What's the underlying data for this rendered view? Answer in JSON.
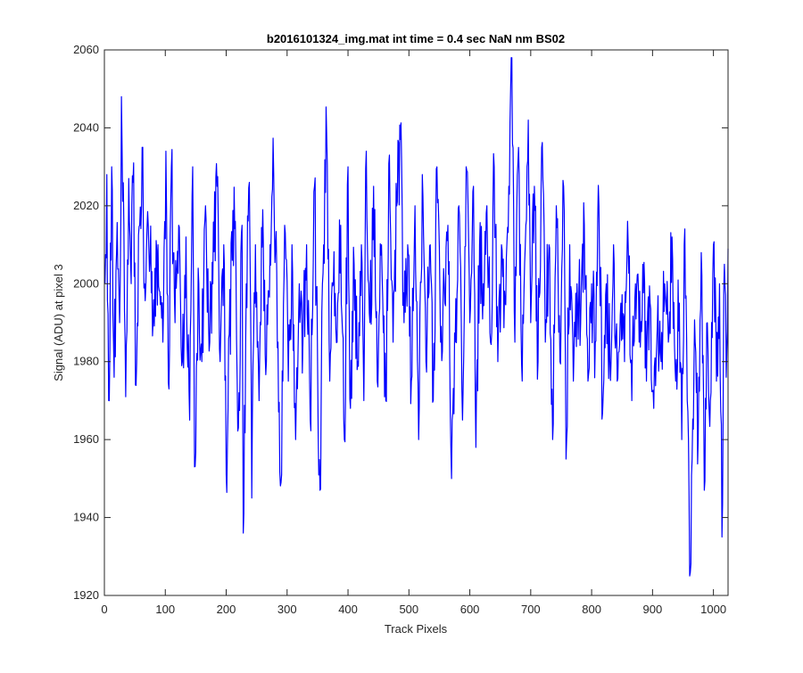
{
  "chart_data": {
    "type": "line",
    "title": "b2016101324_img.mat int time = 0.4 sec  NaN nm BS02",
    "xlabel": "Track Pixels",
    "ylabel": "Signal (ADU) at pixel 3",
    "xlim": [
      0,
      1024
    ],
    "ylim": [
      1920,
      2060
    ],
    "xticks": [
      0,
      100,
      200,
      300,
      400,
      500,
      600,
      700,
      800,
      900,
      1000
    ],
    "yticks": [
      1920,
      1940,
      1960,
      1980,
      2000,
      2020,
      2040,
      2060
    ],
    "grid": false,
    "series_color": "#0000ff",
    "series": [
      {
        "x_start": 1,
        "x_step": 1,
        "anchors": [
          [
            1,
            2000
          ],
          [
            4,
            2028
          ],
          [
            7,
            1970
          ],
          [
            12,
            2030
          ],
          [
            16,
            1976
          ],
          [
            20,
            2008
          ],
          [
            25,
            1990
          ],
          [
            28,
            2048
          ],
          [
            32,
            2015
          ],
          [
            35,
            1971
          ],
          [
            40,
            2027
          ],
          [
            44,
            2000
          ],
          [
            48,
            2031
          ],
          [
            51,
            1974
          ],
          [
            58,
            2015
          ],
          [
            62,
            2035
          ],
          [
            66,
            2000
          ],
          [
            72,
            2015
          ],
          [
            80,
            1990
          ],
          [
            88,
            2010
          ],
          [
            96,
            1985
          ],
          [
            101,
            2034
          ],
          [
            106,
            1973
          ],
          [
            110,
            2030
          ],
          [
            116,
            1990
          ],
          [
            122,
            2015
          ],
          [
            128,
            1980
          ],
          [
            134,
            2012
          ],
          [
            140,
            1965
          ],
          [
            145,
            2030
          ],
          [
            148,
            1953
          ],
          [
            155,
            2000
          ],
          [
            160,
            1980
          ],
          [
            166,
            2020
          ],
          [
            173,
            1985
          ],
          [
            178,
            2000
          ],
          [
            185,
            2025
          ],
          [
            190,
            1980
          ],
          [
            196,
            2010
          ],
          [
            200,
            1951
          ],
          [
            205,
            1987
          ],
          [
            210,
            2006
          ],
          [
            215,
            2016
          ],
          [
            220,
            1963
          ],
          [
            226,
            2015
          ],
          [
            228,
            1936
          ],
          [
            233,
            2000
          ],
          [
            238,
            2026
          ],
          [
            242,
            1945
          ],
          [
            248,
            2010
          ],
          [
            254,
            1970
          ],
          [
            260,
            2019
          ],
          [
            266,
            1980
          ],
          [
            272,
            2010
          ],
          [
            278,
            2028
          ],
          [
            285,
            1985
          ],
          [
            290,
            1949
          ],
          [
            296,
            2015
          ],
          [
            302,
            1975
          ],
          [
            308,
            2010
          ],
          [
            314,
            1960
          ],
          [
            320,
            2000
          ],
          [
            326,
            1985
          ],
          [
            332,
            2010
          ],
          [
            338,
            1965
          ],
          [
            345,
            2025
          ],
          [
            350,
            1980
          ],
          [
            354,
            1947
          ],
          [
            358,
            2000
          ],
          [
            365,
            2038
          ],
          [
            370,
            1975
          ],
          [
            376,
            2000
          ],
          [
            382,
            1985
          ],
          [
            388,
            2015
          ],
          [
            394,
            1960
          ],
          [
            400,
            2030
          ],
          [
            404,
            1968
          ],
          [
            410,
            2005
          ],
          [
            416,
            1980
          ],
          [
            422,
            2010
          ],
          [
            426,
            1970
          ],
          [
            430,
            2034
          ],
          [
            436,
            1990
          ],
          [
            442,
            2025
          ],
          [
            448,
            1975
          ],
          [
            455,
            2010
          ],
          [
            462,
            1970
          ],
          [
            468,
            2033
          ],
          [
            474,
            1985
          ],
          [
            480,
            2020
          ],
          [
            486,
            2037
          ],
          [
            492,
            1990
          ],
          [
            498,
            2010
          ],
          [
            504,
            1975
          ],
          [
            510,
            2020
          ],
          [
            516,
            1960
          ],
          [
            522,
            2028
          ],
          [
            528,
            1980
          ],
          [
            535,
            2010
          ],
          [
            540,
            1970
          ],
          [
            546,
            2030
          ],
          [
            552,
            1985
          ],
          [
            558,
            2000
          ],
          [
            564,
            2015
          ],
          [
            570,
            1950
          ],
          [
            576,
            1985
          ],
          [
            582,
            2020
          ],
          [
            588,
            1965
          ],
          [
            594,
            2030
          ],
          [
            600,
            1990
          ],
          [
            606,
            2025
          ],
          [
            610,
            1958
          ],
          [
            616,
            2010
          ],
          [
            622,
            2000
          ],
          [
            628,
            2020
          ],
          [
            634,
            1985
          ],
          [
            640,
            2030
          ],
          [
            646,
            1980
          ],
          [
            652,
            2010
          ],
          [
            658,
            1995
          ],
          [
            664,
            2025
          ],
          [
            668,
            2059
          ],
          [
            674,
            1985
          ],
          [
            680,
            2035
          ],
          [
            686,
            1975
          ],
          [
            692,
            2015
          ],
          [
            696,
            2042
          ],
          [
            700,
            1990
          ],
          [
            706,
            2025
          ],
          [
            712,
            1980
          ],
          [
            718,
            2035
          ],
          [
            724,
            1985
          ],
          [
            730,
            2010
          ],
          [
            736,
            1960
          ],
          [
            742,
            2020
          ],
          [
            748,
            1980
          ],
          [
            754,
            2025
          ],
          [
            758,
            1955
          ],
          [
            764,
            2010
          ],
          [
            770,
            1975
          ],
          [
            776,
            2000
          ],
          [
            782,
            1990
          ],
          [
            788,
            2015
          ],
          [
            794,
            1975
          ],
          [
            800,
            2000
          ],
          [
            806,
            1985
          ],
          [
            812,
            2020
          ],
          [
            818,
            1967
          ],
          [
            824,
            2000
          ],
          [
            830,
            1980
          ],
          [
            836,
            2010
          ],
          [
            842,
            1975
          ],
          [
            848,
            1995
          ],
          [
            854,
            1980
          ],
          [
            860,
            2010
          ],
          [
            866,
            1970
          ],
          [
            872,
            2000
          ],
          [
            878,
            1985
          ],
          [
            884,
            2005
          ],
          [
            890,
            1975
          ],
          [
            896,
            1995
          ],
          [
            902,
            1968
          ],
          [
            908,
            1990
          ],
          [
            914,
            1980
          ],
          [
            920,
            2000
          ],
          [
            926,
            1985
          ],
          [
            932,
            2012
          ],
          [
            938,
            1975
          ],
          [
            944,
            1995
          ],
          [
            948,
            1960
          ],
          [
            952,
            2010
          ],
          [
            957,
            1970
          ],
          [
            961,
            1925
          ],
          [
            965,
            1955
          ],
          [
            970,
            1985
          ],
          [
            975,
            1960
          ],
          [
            980,
            2008
          ],
          [
            985,
            1947
          ],
          [
            990,
            1990
          ],
          [
            995,
            1970
          ],
          [
            1000,
            2010
          ],
          [
            1005,
            1975
          ],
          [
            1010,
            2000
          ],
          [
            1014,
            1935
          ],
          [
            1018,
            2005
          ],
          [
            1021,
            1976
          ],
          [
            1024,
            2009
          ]
        ]
      }
    ]
  }
}
